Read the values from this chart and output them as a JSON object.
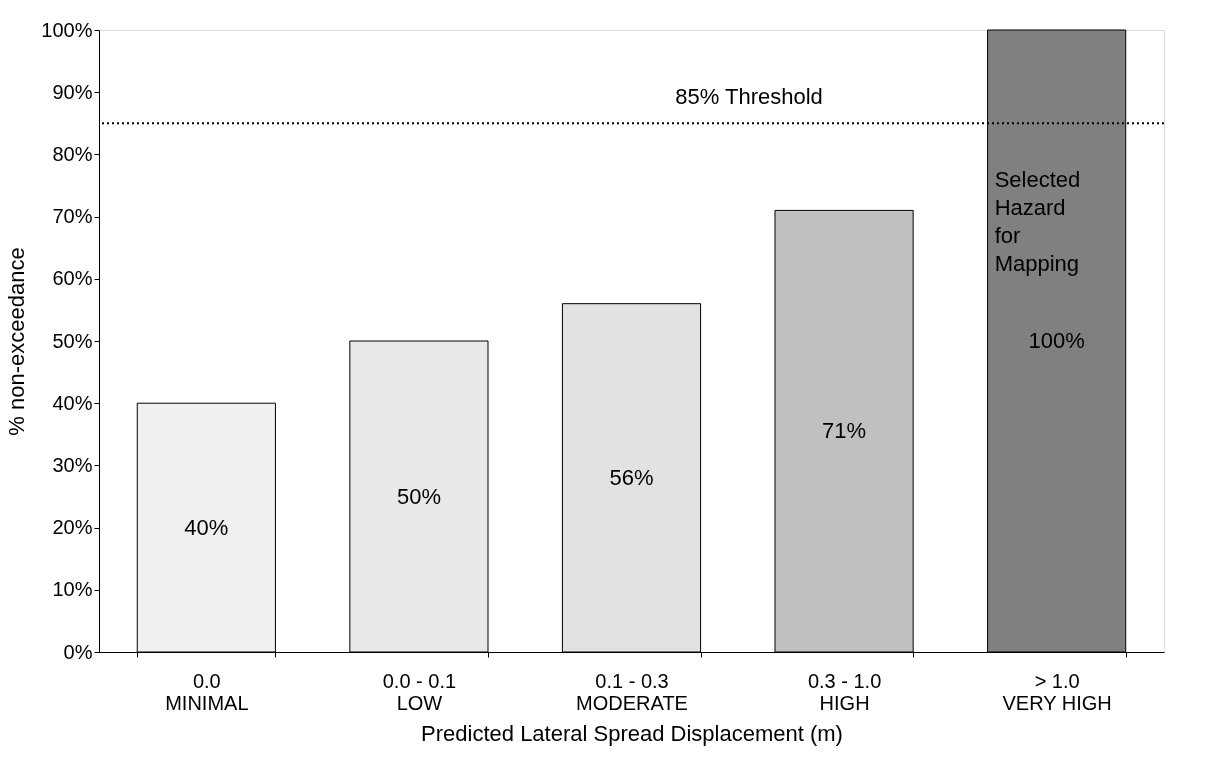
{
  "chart_data": {
    "type": "bar",
    "xlabel": "Predicted Lateral Spread Displacement (m)",
    "ylabel": "% non-exceedance",
    "categories": [
      "0.0\nMINIMAL",
      "0.0 - 0.1\nLOW",
      "0.1 - 0.3\nMODERATE",
      "0.3 - 1.0\nHIGH",
      "> 1.0\nVERY HIGH"
    ],
    "values": [
      40,
      50,
      56,
      71,
      100
    ],
    "value_labels": [
      "40%",
      "50%",
      "56%",
      "71%",
      "100%"
    ],
    "colors": [
      "#f0f0f0",
      "#e8e8e8",
      "#e2e2e2",
      "#c0c0c0",
      "#808080"
    ],
    "ylim": [
      0,
      100
    ],
    "yticks": [
      {
        "value": 0,
        "label": "0%"
      },
      {
        "value": 10,
        "label": "10%"
      },
      {
        "value": 20,
        "label": "20%"
      },
      {
        "value": 30,
        "label": "30%"
      },
      {
        "value": 40,
        "label": "40%"
      },
      {
        "value": 50,
        "label": "50%"
      },
      {
        "value": 60,
        "label": "60%"
      },
      {
        "value": 70,
        "label": "70%"
      },
      {
        "value": 80,
        "label": "80%"
      },
      {
        "value": 90,
        "label": "90%"
      },
      {
        "value": 100,
        "label": "100%"
      }
    ],
    "ref_lines": [
      {
        "axis": "y",
        "value": 85,
        "label": "85% Threshold",
        "line_style": "dotted",
        "color": "#000000"
      }
    ],
    "annotations": [
      "Selected Hazard for Mapping"
    ],
    "grid": false
  }
}
